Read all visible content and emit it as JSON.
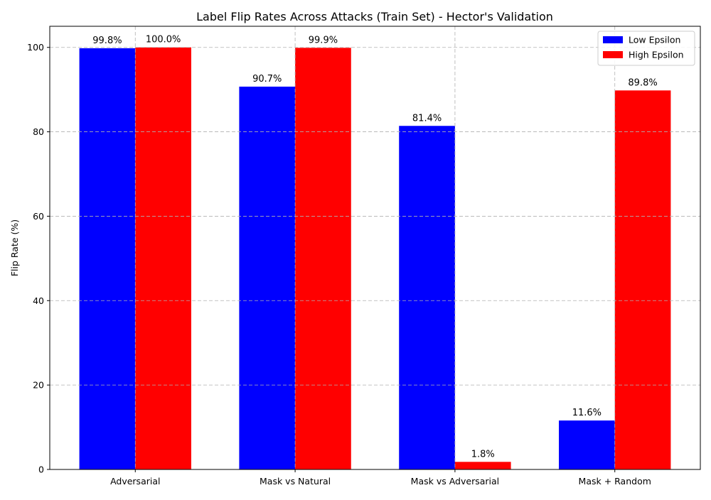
{
  "chart_data": {
    "type": "bar",
    "title": "Label Flip Rates Across Attacks (Train Set) - Hector's Validation",
    "xlabel": "",
    "ylabel": "Flip Rate (%)",
    "categories": [
      "Adversarial",
      "Mask vs Natural",
      "Mask vs Adversarial",
      "Mask + Random"
    ],
    "series": [
      {
        "name": "Low Epsilon",
        "color": "#0000ff",
        "values": [
          99.8,
          90.7,
          81.4,
          11.6
        ],
        "labels": [
          "99.8%",
          "90.7%",
          "81.4%",
          "11.6%"
        ]
      },
      {
        "name": "High Epsilon",
        "color": "#ff0000",
        "values": [
          100.0,
          99.9,
          1.8,
          89.8
        ],
        "labels": [
          "100.0%",
          "99.9%",
          "1.8%",
          "89.8%"
        ]
      }
    ],
    "ylim": [
      0,
      105
    ],
    "yticks": [
      0,
      20,
      40,
      60,
      80,
      100
    ],
    "ytick_labels": [
      "0",
      "20",
      "40",
      "60",
      "80",
      "100"
    ],
    "grid": true,
    "legend_position": "top-right"
  }
}
